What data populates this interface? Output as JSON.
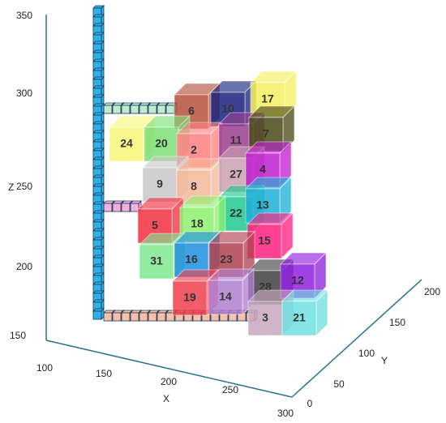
{
  "axes": {
    "z": {
      "label": "Z",
      "ticks": [
        "350",
        "300",
        "250",
        "200",
        "150"
      ]
    },
    "x": {
      "label": "X",
      "ticks": [
        "100",
        "150",
        "200",
        "250",
        "300"
      ]
    },
    "y": {
      "label": "Y",
      "ticks": [
        "0",
        "50",
        "100",
        "150",
        "200"
      ]
    }
  },
  "cubes": [
    {
      "label": "6",
      "color": "#b5523a"
    },
    {
      "label": "10",
      "color": "#1a237e"
    },
    {
      "label": "17",
      "color": "#f5f060"
    },
    {
      "label": "24",
      "color": "#f8f77a"
    },
    {
      "label": "20",
      "color": "#7de07a"
    },
    {
      "label": "2",
      "color": "#ff8080"
    },
    {
      "label": "11",
      "color": "#9c3f8f"
    },
    {
      "label": "7",
      "color": "#4a4a1a"
    },
    {
      "label": "9",
      "color": "#c8c8c8"
    },
    {
      "label": "8",
      "color": "#f5b89a"
    },
    {
      "label": "27",
      "color": "#c8a0b0"
    },
    {
      "label": "4",
      "color": "#c020d0"
    },
    {
      "label": "22",
      "color": "#20c890"
    },
    {
      "label": "13",
      "color": "#20b0d8"
    },
    {
      "label": "5",
      "color": "#f03040"
    },
    {
      "label": "18",
      "color": "#90f070"
    },
    {
      "label": "15",
      "color": "#ff2080"
    },
    {
      "label": "31",
      "color": "#80e890"
    },
    {
      "label": "16",
      "color": "#2090e0"
    },
    {
      "label": "23",
      "color": "#b04050"
    },
    {
      "label": "28",
      "color": "#404040"
    },
    {
      "label": "12",
      "color": "#9020e0"
    },
    {
      "label": "19",
      "color": "#f04050"
    },
    {
      "label": "14",
      "color": "#b080d0"
    },
    {
      "label": "3",
      "color": "#c8a8c0"
    },
    {
      "label": "21",
      "color": "#70e0e0"
    }
  ]
}
